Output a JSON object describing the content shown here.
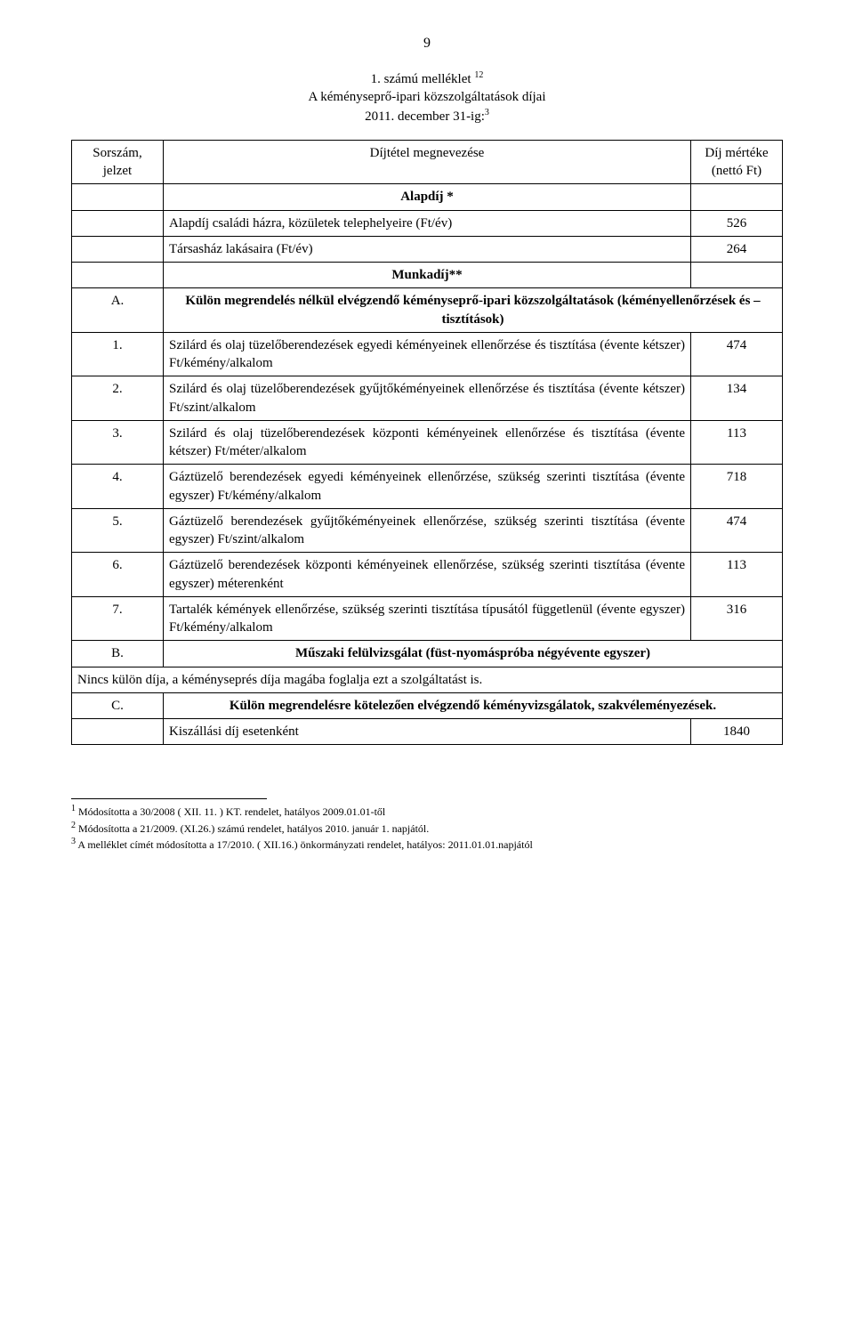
{
  "page_number": "9",
  "title": {
    "line1_pre": "1. számú melléklet ",
    "line1_sup": "12",
    "line2": "A kéményseprő-ipari közszolgáltatások díjai",
    "line3_pre": "2011. december 31-ig:",
    "line3_sup": "3"
  },
  "header": {
    "col1": "Sorszám, jelzet",
    "col2": "Díjtétel megnevezése",
    "col3": "Díj mértéke (nettó Ft)"
  },
  "section_alapdij": {
    "heading": "Alapdíj *",
    "rows": [
      {
        "label": "Alapdíj családi házra, közületek telephelyeire (Ft/év)",
        "value": "526"
      },
      {
        "label": "Társasház lakásaira (Ft/év)",
        "value": "264"
      }
    ]
  },
  "section_munkadij_heading": "Munkadíj**",
  "section_A": {
    "num": "A.",
    "bold_text": "Külön megrendelés nélkül elvégzendő kéményseprő-ipari közszolgáltatások (kéményellenőrzések és –tisztítások)"
  },
  "rows_main": [
    {
      "num": "1.",
      "label": "Szilárd és olaj tüzelőberendezések egyedi kéményeinek ellenőrzése és tisztítása (évente kétszer) Ft/kémény/alkalom",
      "value": "474"
    },
    {
      "num": "2.",
      "label": "Szilárd és olaj tüzelőberendezések gyűjtőkéményeinek ellenőrzése és tisztítása (évente kétszer) Ft/szint/alkalom",
      "value": "134"
    },
    {
      "num": "3.",
      "label": "Szilárd és olaj tüzelőberendezések központi kéményeinek ellenőrzése és tisztítása (évente kétszer) Ft/méter/alkalom",
      "value": "113"
    },
    {
      "num": "4.",
      "label": "Gáztüzelő berendezések egyedi kéményeinek ellenőrzése, szükség szerinti tisztítása (évente egyszer) Ft/kémény/alkalom",
      "value": "718"
    },
    {
      "num": "5.",
      "label": "Gáztüzelő berendezések gyűjtőkéményeinek ellenőrzése, szükség szerinti tisztítása (évente egyszer) Ft/szint/alkalom",
      "value": "474"
    },
    {
      "num": "6.",
      "label": "Gáztüzelő berendezések központi kéményeinek ellenőrzése, szükség szerinti tisztítása (évente egyszer) méterenként",
      "value": "113"
    },
    {
      "num": "7.",
      "label": "Tartalék kémények ellenőrzése, szükség szerinti tisztítása típusától függetlenül (évente egyszer) Ft/kémény/alkalom",
      "value": "316"
    }
  ],
  "section_B": {
    "num": "B.",
    "bold_text": "Műszaki felülvizsgálat (füst-nyomáspróba négyévente egyszer)"
  },
  "no_fee_line": "Nincs külön díja, a kéményseprés díja magába foglalja ezt a szolgáltatást is.",
  "section_C": {
    "num": "C.",
    "bold_text": "Külön megrendelésre kötelezően elvégzendő kéményvizsgálatok, szakvéleményezések."
  },
  "kiszallasi": {
    "label": "Kiszállási díj esetenként",
    "value": "1840"
  },
  "footnotes": [
    {
      "sup": "1",
      "text": " Módosította a 30/2008 ( XII. 11. ) KT. rendelet, hatályos 2009.01.01-től"
    },
    {
      "sup": "2",
      "text": " Módosította a 21/2009. (XI.26.) számú rendelet, hatályos 2010. január 1. napjától."
    },
    {
      "sup": "3",
      "text": " A melléklet címét módosította a 17/2010. ( XII.16.) önkormányzati rendelet, hatályos: 2011.01.01.napjától"
    }
  ]
}
